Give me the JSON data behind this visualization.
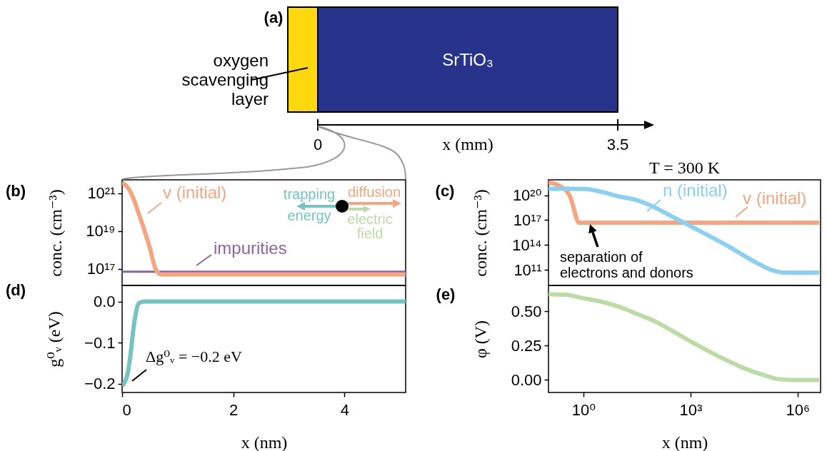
{
  "chart_data": [
    {
      "type": "other",
      "annotations": [
        "(a)",
        "oxygen scavenging layer",
        "SrTiO₃",
        "0",
        "3.5"
      ],
      "xlabel": "x (mm)",
      "colors": [
        "#fdd80e",
        "#28348b"
      ]
    },
    {
      "type": "line",
      "annotations": [
        "(b)",
        "trapping energy",
        "diffusion",
        "electric field"
      ],
      "ylabel": "conc. (cm⁻³)",
      "xlim": [
        0,
        5.1
      ],
      "ylim": [
        1.3e+16,
        5e+21
      ],
      "yticks": [
        {
          "value": 1e+17,
          "label": "10¹⁷"
        },
        {
          "value": 1e+19,
          "label": "10¹⁹"
        },
        {
          "value": 1e+21,
          "label": "10²¹"
        }
      ],
      "log": "y",
      "tick_labels": "y",
      "series": [
        {
          "name": "impurities",
          "color": "#8d62a9",
          "x": [
            0,
            5.1
          ],
          "values": [
            7e+16,
            7e+16
          ]
        },
        {
          "name": "v (initial)",
          "color": "#f4a582",
          "x": [
            0,
            0.1,
            0.2,
            0.3,
            0.4,
            0.5,
            0.6,
            0.7,
            5.1
          ],
          "values": [
            3.5e+21,
            2e+21,
            5.5e+20,
            8e+19,
            1.1e+19,
            1.2e+18,
            1e+17,
            5e+16,
            5e+16
          ]
        }
      ]
    },
    {
      "type": "line",
      "title": "T = 300 K",
      "annotations": [
        "(c)",
        "separation of electrons and donors"
      ],
      "ylabel": "conc. (cm⁻³)",
      "xlim": [
        0.105,
        4400000.0
      ],
      "ylim": [
        1400000000.0,
        7e+21
      ],
      "yticks": [
        {
          "value": 100000000000.0,
          "label": "10¹¹"
        },
        {
          "value": 100000000000000.0,
          "label": "10¹⁴"
        },
        {
          "value": 1e+17,
          "label": "10¹⁷"
        },
        {
          "value": 1e+20,
          "label": "10²⁰"
        }
      ],
      "log": "xy",
      "tick_labels": "y",
      "series": [
        {
          "name": "v (initial)",
          "color": "#f4a582",
          "x": [
            0.105,
            0.26,
            0.43,
            0.55,
            0.66,
            0.75,
            4000000.0
          ],
          "values": [
            3.5e+21,
            8e+20,
            6e+19,
            1.6e+18,
            1.1e+17,
            5e+16,
            5e+16
          ]
        },
        {
          "name": "n (initial)",
          "color": "#8ccff0",
          "x": [
            0.105,
            1,
            3.2,
            10,
            32,
            83,
            316,
            2570,
            10000.0,
            78000.0,
            200000.0,
            400000.0,
            1000000.0,
            4000000.0
          ],
          "values": [
            6e+20,
            5.6e+20,
            2.5e+20,
            7e+19,
            2.5e+19,
            5e+18,
            2.5e+17,
            2300000000000000.0,
            100000000000000.0,
            600000000000.0,
            90000000000.0,
            50000000000.0,
            50000000000.0,
            50000000000.0
          ]
        }
      ]
    },
    {
      "type": "line",
      "annotations": [
        "(d)",
        "Δg⁰ᵥ = −0.2 eV"
      ],
      "xlabel": "x (nm)",
      "ylabel": "g⁰ᵥ (eV)",
      "xlim": [
        0,
        5.1
      ],
      "xticks": [
        0,
        2,
        4
      ],
      "ylim": [
        -0.221,
        0.039
      ],
      "yticks": [
        {
          "value": -0.2,
          "label": "−0.2"
        },
        {
          "value": -0.1,
          "label": "−0.1"
        },
        {
          "value": 0,
          "label": "0.0"
        }
      ],
      "series": [
        {
          "color": "#76c4c0",
          "x": [
            0,
            0.05,
            0.1,
            0.15,
            0.2,
            0.25,
            0.3,
            0.4,
            5.1
          ],
          "values": [
            -0.205,
            -0.195,
            -0.175,
            -0.13,
            -0.07,
            -0.026,
            -0.004,
            0,
            0
          ]
        }
      ]
    },
    {
      "type": "line",
      "annotations": [
        "(e)"
      ],
      "xlabel": "x (nm)",
      "ylabel": "φ (V)",
      "xlim": [
        0.105,
        4400000.0
      ],
      "xticks": [
        {
          "value": 1,
          "label": "10⁰"
        },
        {
          "value": 1000,
          "label": "10³"
        },
        {
          "value": 1000000,
          "label": "10⁶"
        }
      ],
      "ylim": [
        -0.091,
        0.688
      ],
      "yticks": [
        {
          "value": 0,
          "label": "0.00"
        },
        {
          "value": 0.25,
          "label": "0.25"
        },
        {
          "value": 0.5,
          "label": "0.50"
        }
      ],
      "log": "x",
      "series": [
        {
          "color": "#bcdba6",
          "x": [
            0.105,
            0.32,
            1,
            3.2,
            10,
            32,
            100,
            320,
            1000,
            3200,
            10000.0,
            32000.0,
            100000.0,
            320000.0,
            1000000.0,
            4000000.0
          ],
          "values": [
            0.625,
            0.62,
            0.595,
            0.57,
            0.533,
            0.48,
            0.427,
            0.355,
            0.281,
            0.21,
            0.145,
            0.085,
            0.04,
            0.005,
            0,
            0
          ]
        }
      ]
    }
  ]
}
